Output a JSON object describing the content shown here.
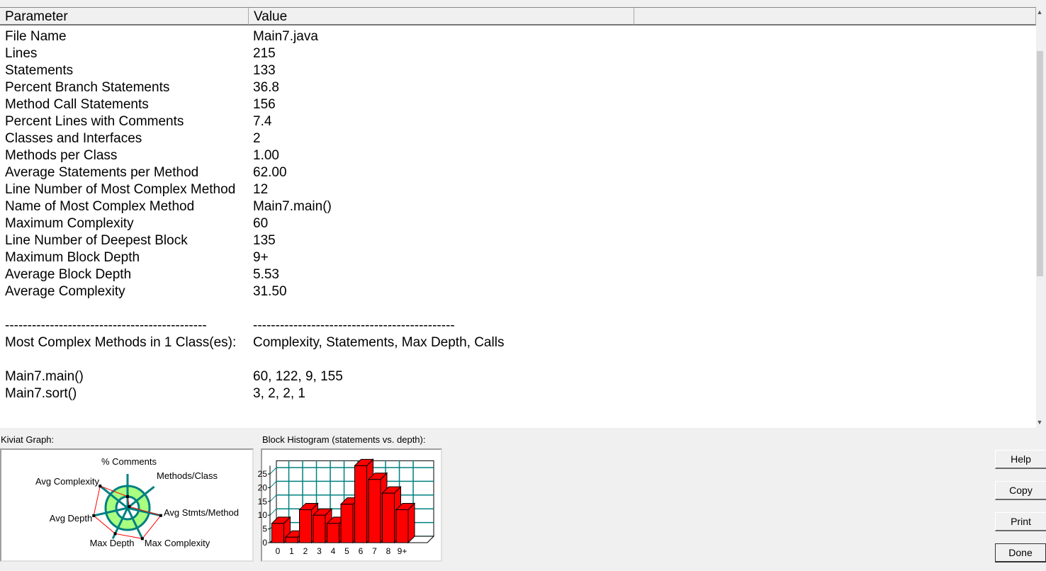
{
  "table": {
    "columns": [
      "Parameter",
      "Value"
    ],
    "rows": [
      [
        "File Name",
        "Main7.java"
      ],
      [
        "Lines",
        "215"
      ],
      [
        "Statements",
        "133"
      ],
      [
        "Percent Branch Statements",
        "36.8"
      ],
      [
        "Method Call Statements",
        "156"
      ],
      [
        "Percent Lines with Comments",
        "7.4"
      ],
      [
        "Classes and Interfaces",
        "2"
      ],
      [
        "Methods per Class",
        "1.00"
      ],
      [
        "Average Statements per Method",
        "62.00"
      ],
      [
        "Line Number of Most Complex Method",
        "12"
      ],
      [
        "Name of Most Complex Method",
        "Main7.main()"
      ],
      [
        "Maximum Complexity",
        "60"
      ],
      [
        "Line Number of Deepest Block",
        "135"
      ],
      [
        "Maximum Block Depth",
        "9+"
      ],
      [
        "Average Block Depth",
        "5.53"
      ],
      [
        "Average Complexity",
        "31.50"
      ],
      [
        "",
        ""
      ],
      [
        "---------------------------------------------",
        "---------------------------------------------"
      ],
      [
        "Most Complex Methods in 1 Class(es):",
        "Complexity, Statements, Max Depth, Calls"
      ],
      [
        "",
        ""
      ],
      [
        "Main7.main()",
        "60, 122, 9, 155"
      ],
      [
        "Main7.sort()",
        "3, 2, 2, 1"
      ]
    ]
  },
  "kiviat": {
    "label": "Kiviat Graph:",
    "axes": [
      "% Comments",
      "Methods/Class",
      "Avg Stmts/Method",
      "Max Complexity",
      "Max Depth",
      "Avg Depth",
      "Avg Complexity"
    ],
    "values_relative_to_normal_ring": [
      0.52,
      0.1,
      1.55,
      1.55,
      1.3,
      1.58,
      1.6
    ],
    "colors": {
      "spoke": "#008080",
      "ring": "#a8ff80",
      "polygon": "#ff0000"
    }
  },
  "chart_data": {
    "type": "bar",
    "title": "Block Histogram (statements vs. depth):",
    "categories": [
      "0",
      "1",
      "2",
      "3",
      "4",
      "5",
      "6",
      "7",
      "8",
      "9+"
    ],
    "values": [
      7,
      2,
      12,
      10,
      7,
      14,
      28,
      23,
      18,
      12
    ],
    "yticks": [
      0,
      5,
      10,
      15,
      20,
      25
    ],
    "ylim": [
      0,
      28
    ],
    "grid": true,
    "bar_color": "#ff0000",
    "grid_color": "#008080"
  },
  "buttons": {
    "help": "Help",
    "copy": "Copy",
    "print": "Print",
    "done": "Done"
  }
}
